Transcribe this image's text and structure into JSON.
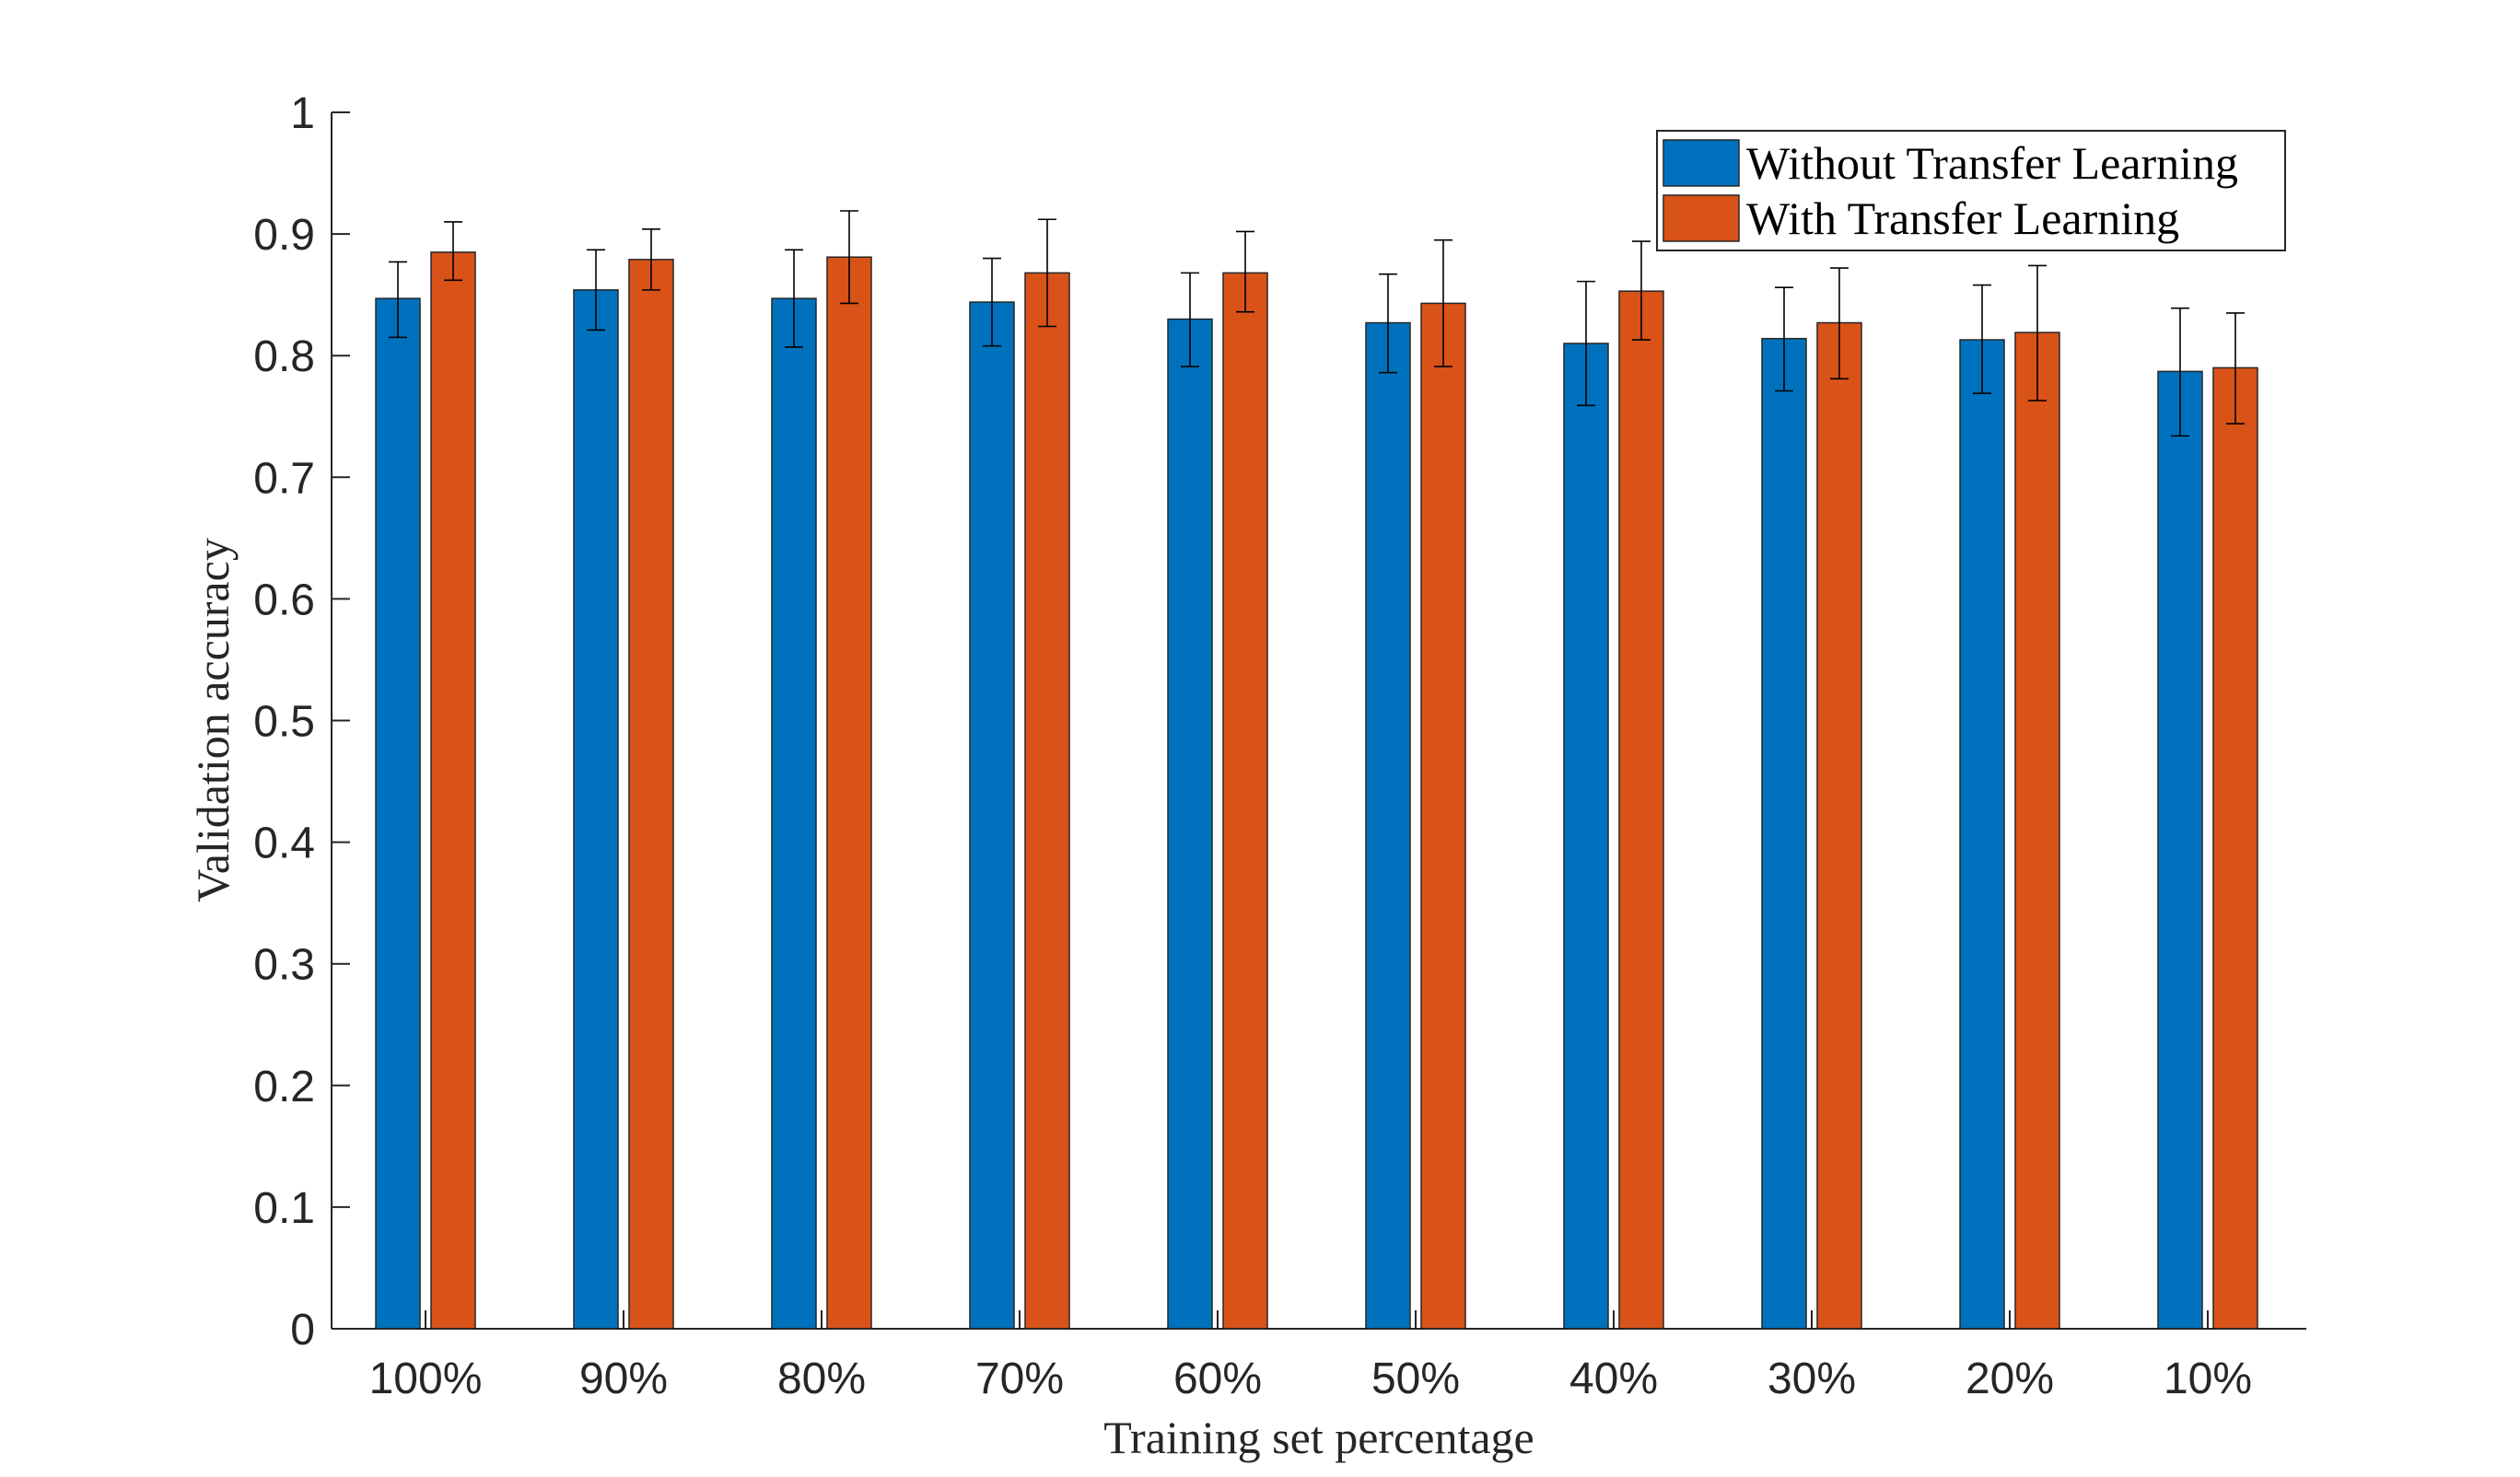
{
  "chart_data": {
    "type": "bar",
    "xlabel": "Training set percentage",
    "ylabel": "Validation accuracy",
    "categories": [
      "100%",
      "90%",
      "80%",
      "70%",
      "60%",
      "50%",
      "40%",
      "30%",
      "20%",
      "10%"
    ],
    "ylim": [
      0,
      1
    ],
    "yticks": [
      "0",
      "0.1",
      "0.2",
      "0.3",
      "0.4",
      "0.5",
      "0.6",
      "0.7",
      "0.8",
      "0.9",
      "1"
    ],
    "grid": false,
    "legend_position": "top-right",
    "error_bars": true,
    "series": [
      {
        "name": "Without Transfer Learning",
        "color": "#0072BD",
        "values": [
          0.847,
          0.854,
          0.847,
          0.844,
          0.83,
          0.827,
          0.81,
          0.814,
          0.813,
          0.787
        ],
        "err_low": [
          0.032,
          0.033,
          0.04,
          0.036,
          0.039,
          0.041,
          0.051,
          0.043,
          0.044,
          0.053
        ],
        "err_high": [
          0.03,
          0.033,
          0.04,
          0.036,
          0.038,
          0.04,
          0.051,
          0.042,
          0.045,
          0.052
        ]
      },
      {
        "name": "With Transfer Learning",
        "color": "#D95319",
        "values": [
          0.885,
          0.879,
          0.881,
          0.868,
          0.868,
          0.843,
          0.853,
          0.827,
          0.819,
          0.79
        ],
        "err_low": [
          0.023,
          0.025,
          0.038,
          0.044,
          0.032,
          0.052,
          0.04,
          0.046,
          0.056,
          0.046
        ],
        "err_high": [
          0.025,
          0.025,
          0.038,
          0.044,
          0.034,
          0.052,
          0.041,
          0.045,
          0.055,
          0.045
        ]
      }
    ]
  }
}
